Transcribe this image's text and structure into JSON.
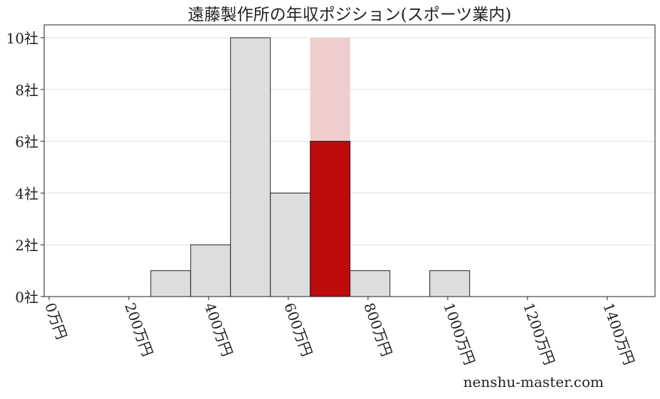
{
  "chart_data": {
    "type": "bar",
    "title": "遠藤製作所の年収ポジション(スポーツ業内)",
    "xlabel": "",
    "ylabel": "",
    "bin_edges": [
      255,
      355,
      455,
      555,
      655,
      755,
      855,
      955,
      1055
    ],
    "values": [
      1,
      2,
      10,
      4,
      6,
      1,
      0,
      1
    ],
    "highlight_bin_index": 4,
    "highlight_background_value": 10,
    "xlim": [
      -12.5,
      1520
    ],
    "ylim": [
      0,
      10
    ],
    "x_ticks": [
      0,
      200,
      400,
      600,
      800,
      1000,
      1200,
      1400
    ],
    "x_tick_labels": [
      "0万円",
      "200万円",
      "400万円",
      "600万円",
      "800万円",
      "1000万円",
      "1200万円",
      "1400万円"
    ],
    "y_ticks": [
      0,
      2,
      4,
      6,
      8,
      10
    ],
    "y_tick_labels": [
      "0社",
      "2社",
      "4社",
      "6社",
      "8社",
      "10社"
    ],
    "grid": "horizontal",
    "colors": {
      "bar": "#dcdddf",
      "highlight": "#bd0a0a",
      "highlight_background": "#f0cccc",
      "grid": "#dddddd"
    }
  },
  "watermark": "nenshu-master.com"
}
